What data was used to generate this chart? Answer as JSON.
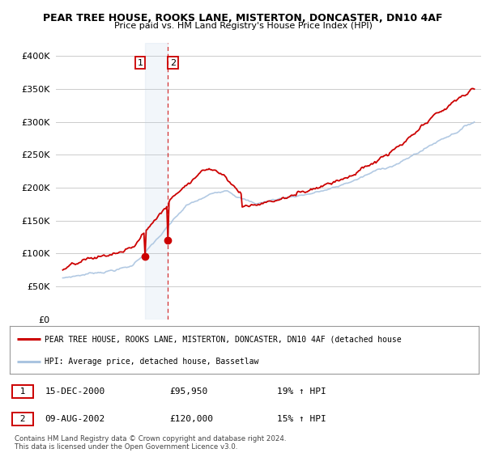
{
  "title": "PEAR TREE HOUSE, ROOKS LANE, MISTERTON, DONCASTER, DN10 4AF",
  "subtitle": "Price paid vs. HM Land Registry's House Price Index (HPI)",
  "background_color": "#ffffff",
  "plot_bg_color": "#ffffff",
  "grid_color": "#cccccc",
  "hpi_color": "#aac4e0",
  "price_color": "#cc0000",
  "sale1_date": "15-DEC-2000",
  "sale1_price": 95950,
  "sale1_hpi": "19% ↑ HPI",
  "sale2_date": "09-AUG-2002",
  "sale2_price": 120000,
  "sale2_hpi": "15% ↑ HPI",
  "legend_label1": "PEAR TREE HOUSE, ROOKS LANE, MISTERTON, DONCASTER, DN10 4AF (detached house",
  "legend_label2": "HPI: Average price, detached house, Bassetlaw",
  "footer": "Contains HM Land Registry data © Crown copyright and database right 2024.\nThis data is licensed under the Open Government Licence v3.0.",
  "ylim": [
    0,
    420000
  ],
  "yticks": [
    0,
    50000,
    100000,
    150000,
    200000,
    250000,
    300000,
    350000,
    400000
  ],
  "sale1_x": 2001.0,
  "sale2_x": 2002.67,
  "hpi_seed": 7,
  "price_seed": 13
}
